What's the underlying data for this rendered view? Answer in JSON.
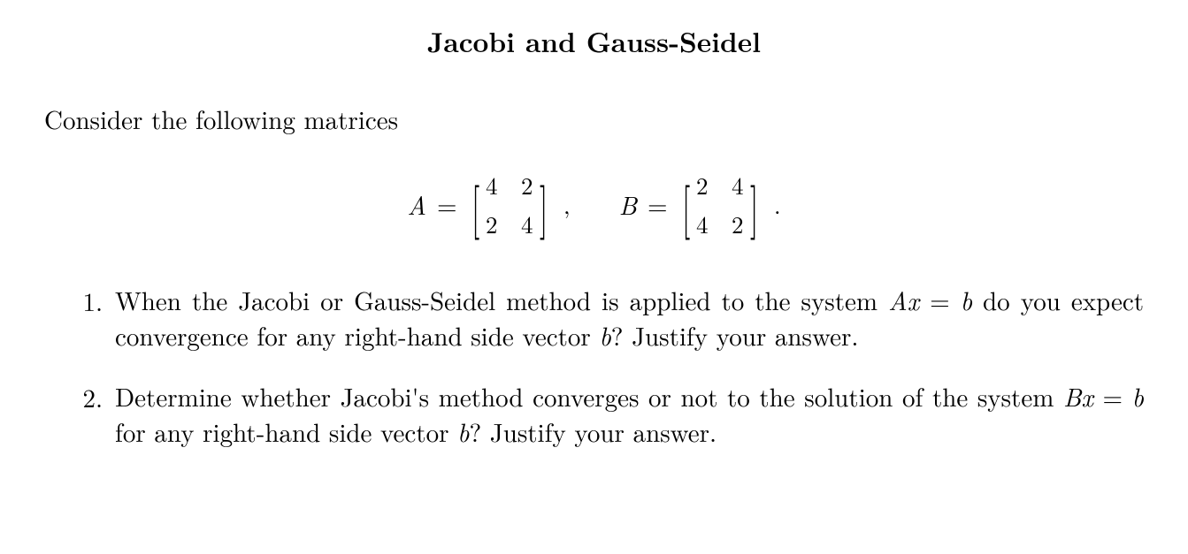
{
  "title": "Jacobi and Gauss-Seidel",
  "intro": "Consider the following matrices",
  "matrixA": {
    "name": "A",
    "r1c1": "4",
    "r1c2": "2",
    "r2c1": "2",
    "r2c2": "4",
    "trail": ","
  },
  "matrixB": {
    "name": "B",
    "r1c1": "2",
    "r1c2": "4",
    "r2c1": "4",
    "r2c2": "2",
    "trail": "."
  },
  "items": [
    {
      "num": "1.",
      "pre": "When the Jacobi or Gauss-Seidel method is applied to the system ",
      "eq1_lhs": "Ax",
      "eq1_mid": " = ",
      "eq1_rhs": "b",
      "mid": " do you expect convergence for any right-hand side vector ",
      "var2": "b",
      "post": "? Justify your answer."
    },
    {
      "num": "2.",
      "pre": "Determine whether Jacobi's method converges or not to the solution of the system ",
      "eq1_lhs": "Bx",
      "eq1_mid": " = ",
      "eq1_rhs": "b",
      "mid": " for any right-hand side vector ",
      "var2": "b",
      "post": "? Justify your answer."
    }
  ]
}
